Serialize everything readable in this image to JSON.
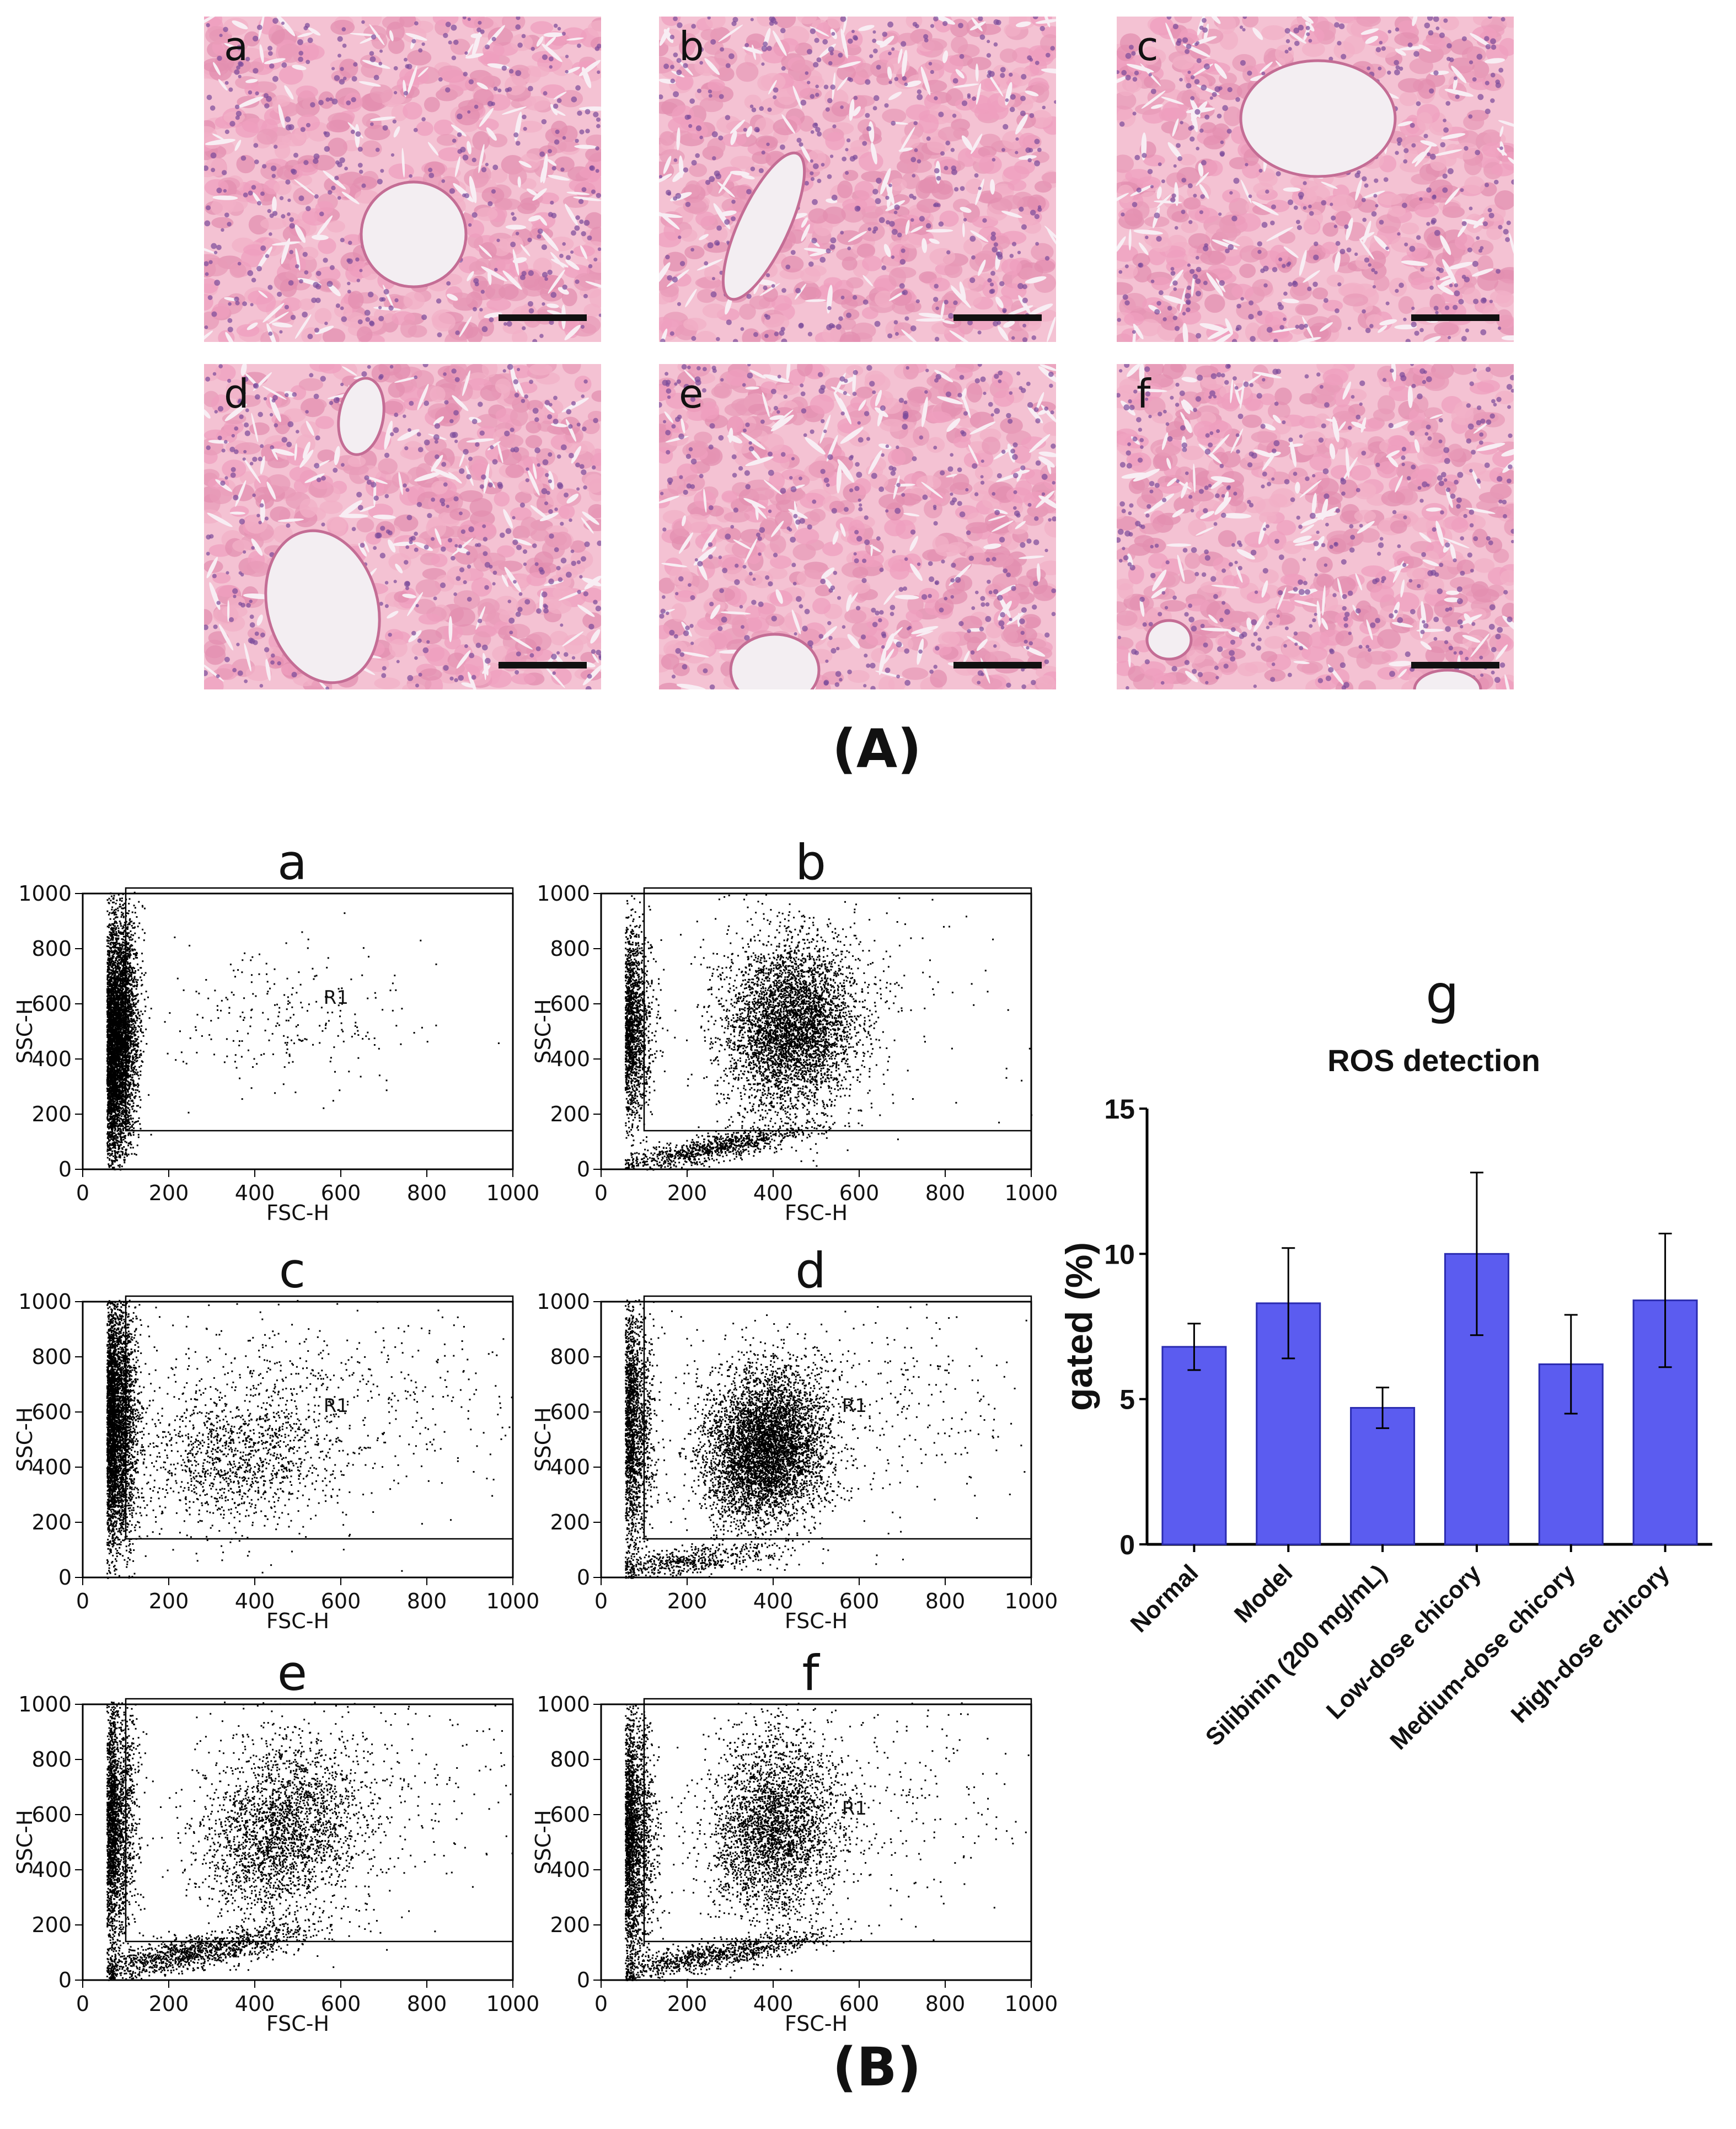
{
  "panel_A": {
    "label": "(A)",
    "images": [
      {
        "letter": "a",
        "vessel": "round"
      },
      {
        "letter": "b",
        "vessel": "elongated"
      },
      {
        "letter": "c",
        "vessel": "large-top"
      },
      {
        "letter": "d",
        "vessel": "lower-left"
      },
      {
        "letter": "e",
        "vessel": "bottom-small"
      },
      {
        "letter": "f",
        "vessel": "left-small"
      }
    ]
  },
  "panel_B": {
    "label": "(B)",
    "flow_plots": [
      {
        "letter": "a",
        "x_label": "FSC-H",
        "y_label": "SSC-H",
        "gate_label": "R1"
      },
      {
        "letter": "b",
        "x_label": "FSC-H",
        "y_label": "SSC-H",
        "gate_label": ""
      },
      {
        "letter": "c",
        "x_label": "FSC-H",
        "y_label": "SSC-H",
        "gate_label": "R1"
      },
      {
        "letter": "d",
        "x_label": "FSC-H",
        "y_label": "SSC-H",
        "gate_label": "R1"
      },
      {
        "letter": "e",
        "x_label": "FSC-H",
        "y_label": "SSC-H",
        "gate_label": ""
      },
      {
        "letter": "f",
        "x_label": "FSC-H",
        "y_label": "SSC-H",
        "gate_label": "R1"
      }
    ],
    "flow_axis_ticks": [
      "0",
      "200",
      "400",
      "600",
      "800",
      "1000"
    ]
  },
  "colors": {
    "bar_fill": "#5b5cf0",
    "bar_stroke": "#2a2bb0",
    "tissue": "#f4c2d3"
  },
  "chart_data": {
    "type": "bar",
    "panel_letter": "g",
    "title": "ROS detection",
    "xlabel": "",
    "ylabel": "gated  (%)",
    "ylim": [
      0,
      15
    ],
    "yticks": [
      0,
      5,
      10,
      15
    ],
    "categories": [
      "Normal",
      "Model",
      "Silibinin (200 mg/mL)",
      "Low-dose chicory",
      "Medium-dose chicory",
      "High-dose chicory"
    ],
    "values": [
      6.8,
      8.3,
      4.7,
      10.0,
      6.2,
      8.4
    ],
    "errors": [
      0.8,
      1.9,
      0.7,
      2.8,
      1.7,
      2.3
    ]
  }
}
